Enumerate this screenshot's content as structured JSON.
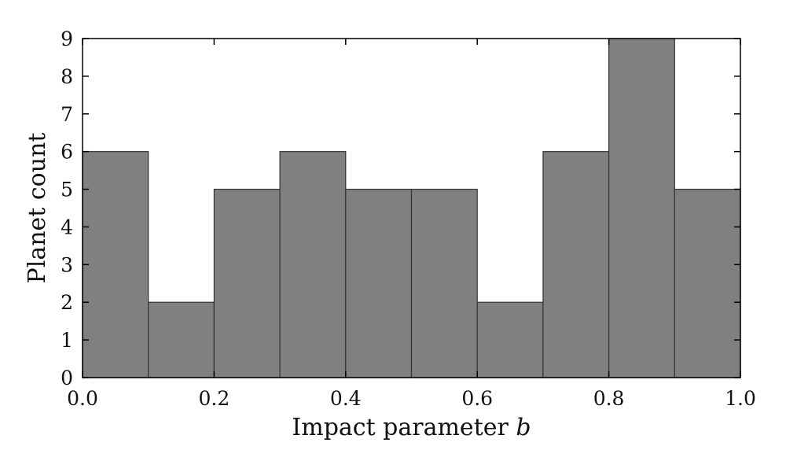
{
  "chart_data": {
    "type": "bar",
    "title": "",
    "xlabel": "Impact parameter",
    "xlabel_var": "b",
    "ylabel": "Planet count",
    "xlim": [
      0.0,
      1.0
    ],
    "ylim": [
      0,
      9
    ],
    "xticks": [
      "0.0",
      "0.2",
      "0.4",
      "0.6",
      "0.8",
      "1.0"
    ],
    "yticks": [
      "0",
      "1",
      "2",
      "3",
      "4",
      "5",
      "6",
      "7",
      "8",
      "9"
    ],
    "bin_edges": [
      0.0,
      0.1,
      0.2,
      0.3,
      0.4,
      0.5,
      0.6,
      0.7,
      0.8,
      0.9,
      1.0
    ],
    "values": [
      6,
      2,
      5,
      6,
      5,
      5,
      2,
      6,
      9,
      5
    ],
    "bar_color": "#808080",
    "edge_color": "#333333",
    "grid": false,
    "legend": "none"
  }
}
